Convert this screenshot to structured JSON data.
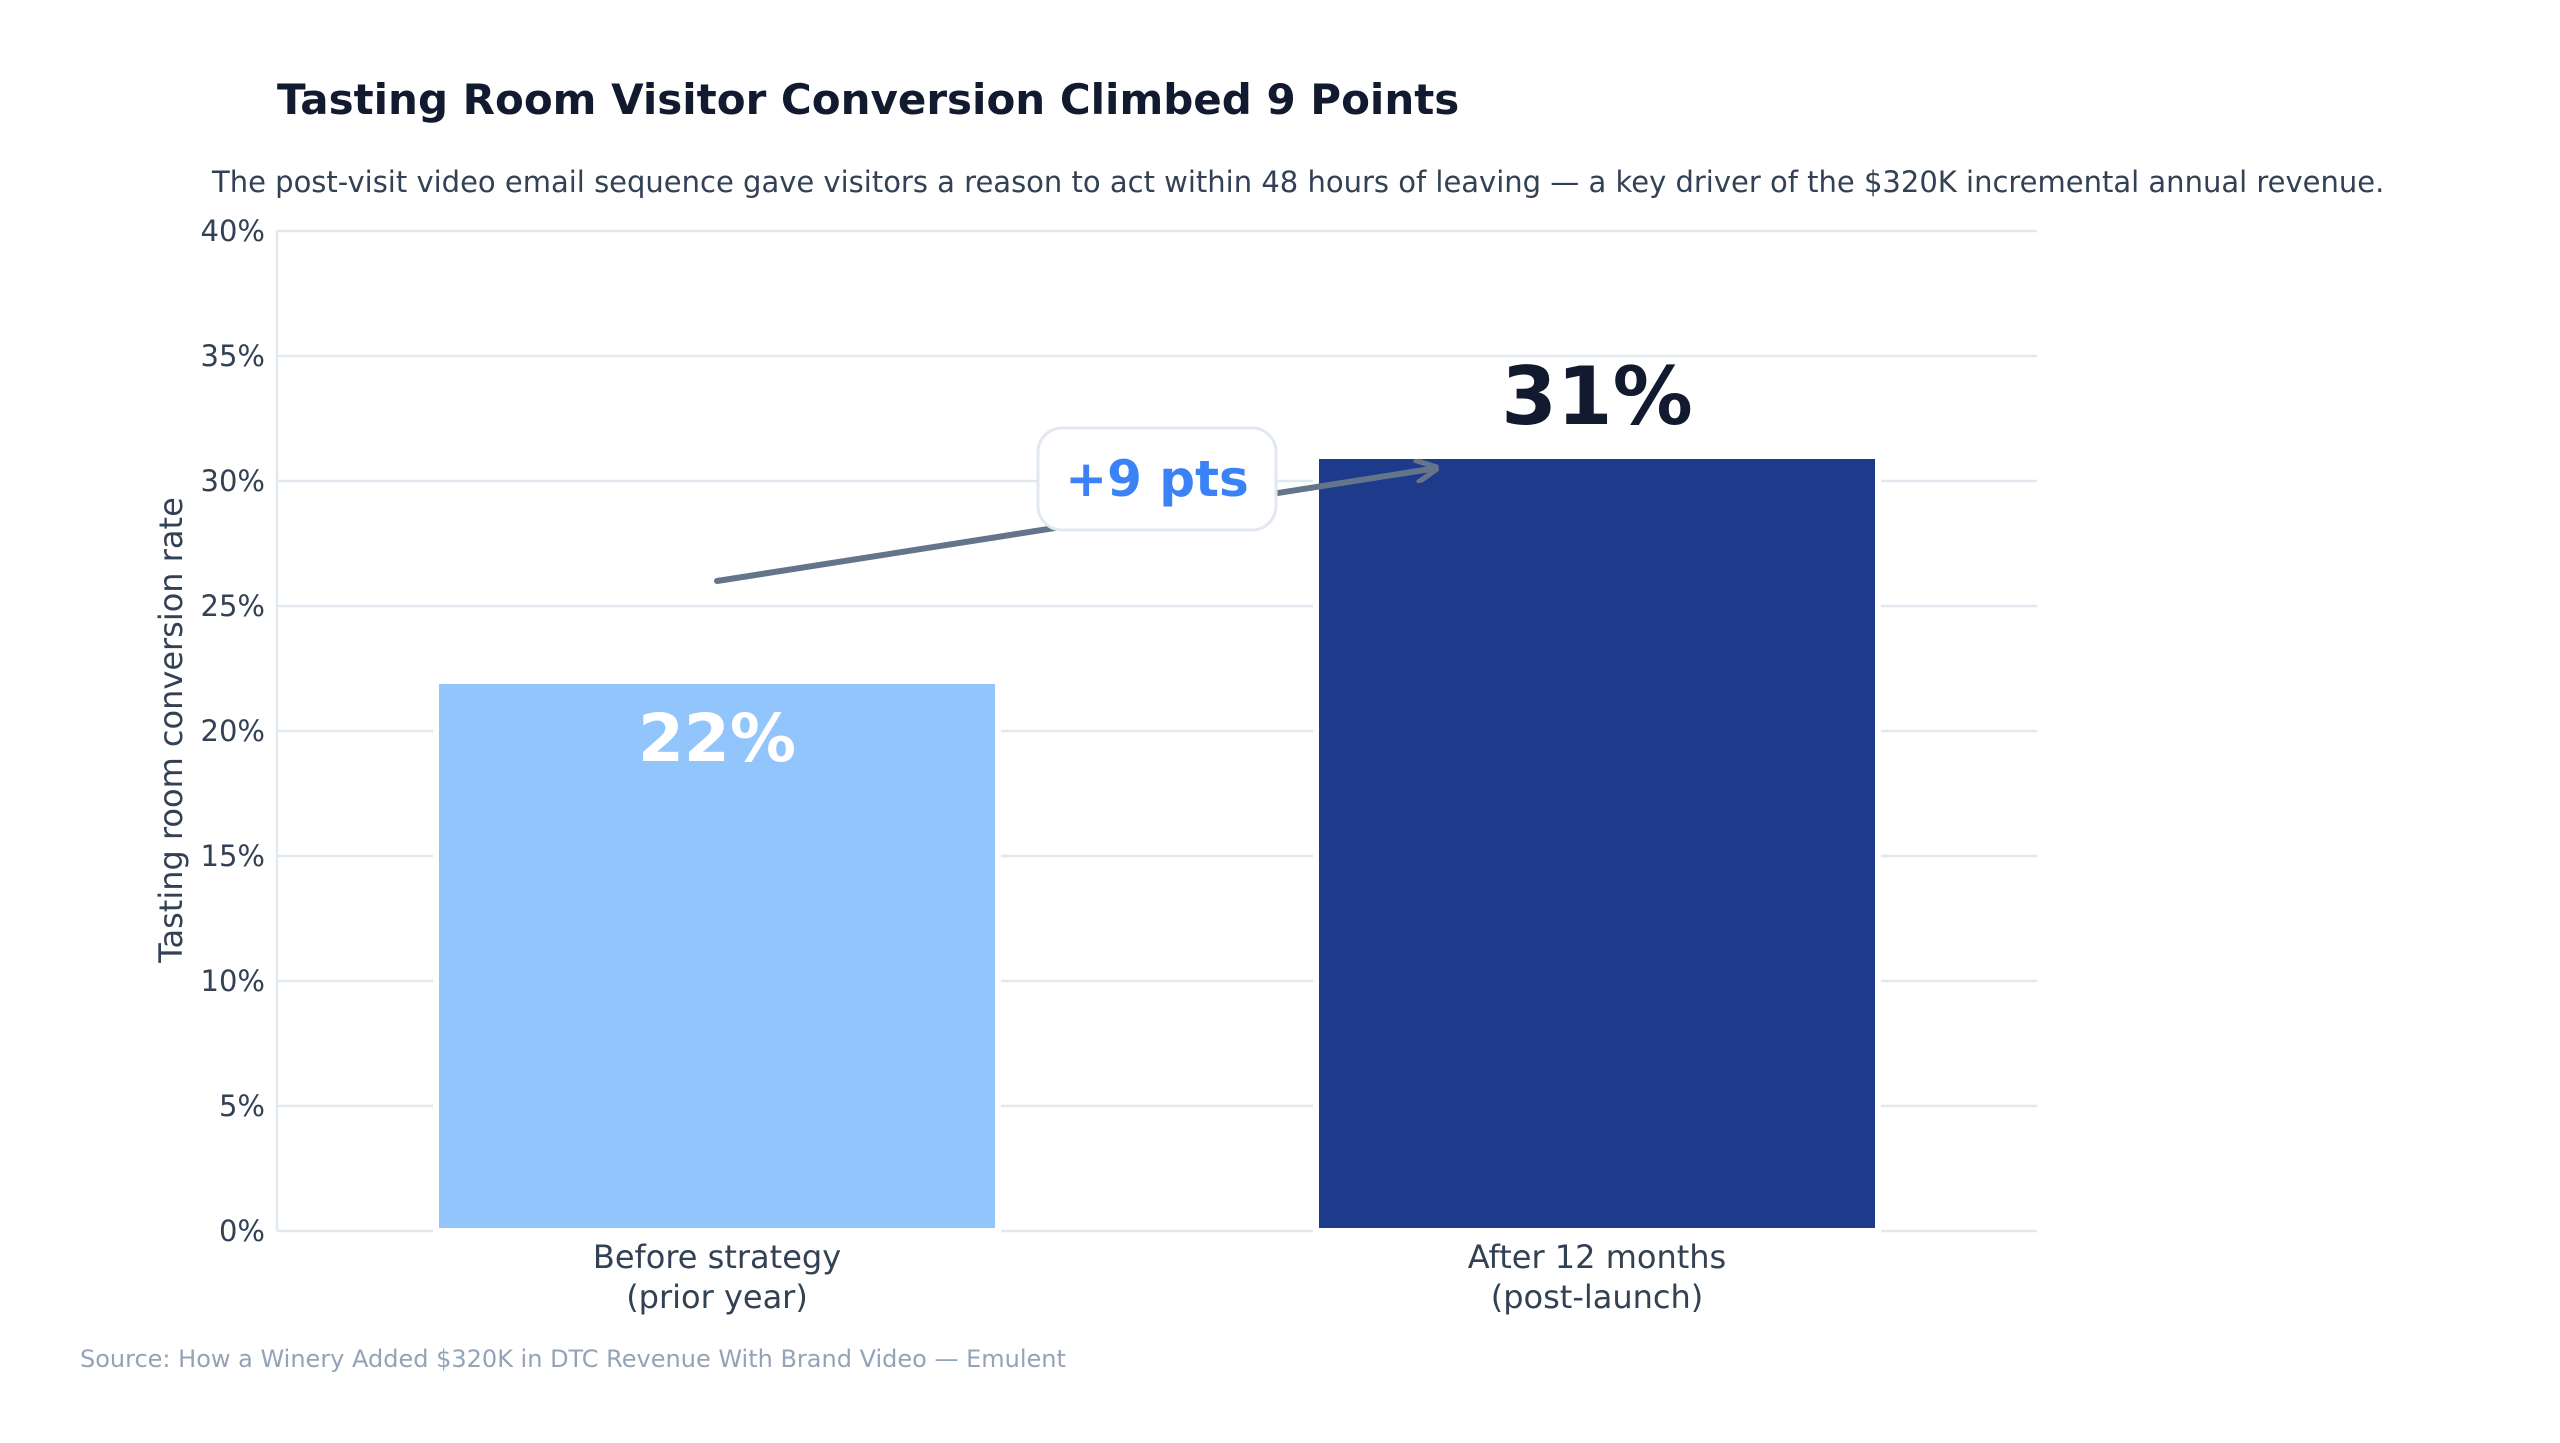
{
  "chart_data": {
    "type": "bar",
    "title": "Tasting Room Visitor Conversion Climbed 9 Points",
    "subtitle": "The post-visit video email sequence gave visitors a reason to act within 48 hours of leaving — a key driver of the $320K incremental annual revenue.",
    "ylabel": "Tasting room conversion rate",
    "xlabel": "",
    "ylim": [
      0,
      40
    ],
    "yticks": [
      0,
      5,
      10,
      15,
      20,
      25,
      30,
      35,
      40
    ],
    "ytick_labels": [
      "0%",
      "5%",
      "10%",
      "15%",
      "20%",
      "25%",
      "30%",
      "35%",
      "40%"
    ],
    "grid": true,
    "categories": [
      [
        "Before strategy",
        "(prior year)"
      ],
      [
        "After 12 months",
        "(post-launch)"
      ]
    ],
    "values": [
      22,
      31
    ],
    "data_labels": [
      "22%",
      "31%"
    ],
    "bar_colors": [
      "#93c5fd",
      "#1e3a8a"
    ],
    "annotation": {
      "text": "+9 pts",
      "from_value": 26,
      "to_value": 30.5
    },
    "source": "Source: How a Winery Added $320K in DTC Revenue With Brand Video — Emulent"
  }
}
